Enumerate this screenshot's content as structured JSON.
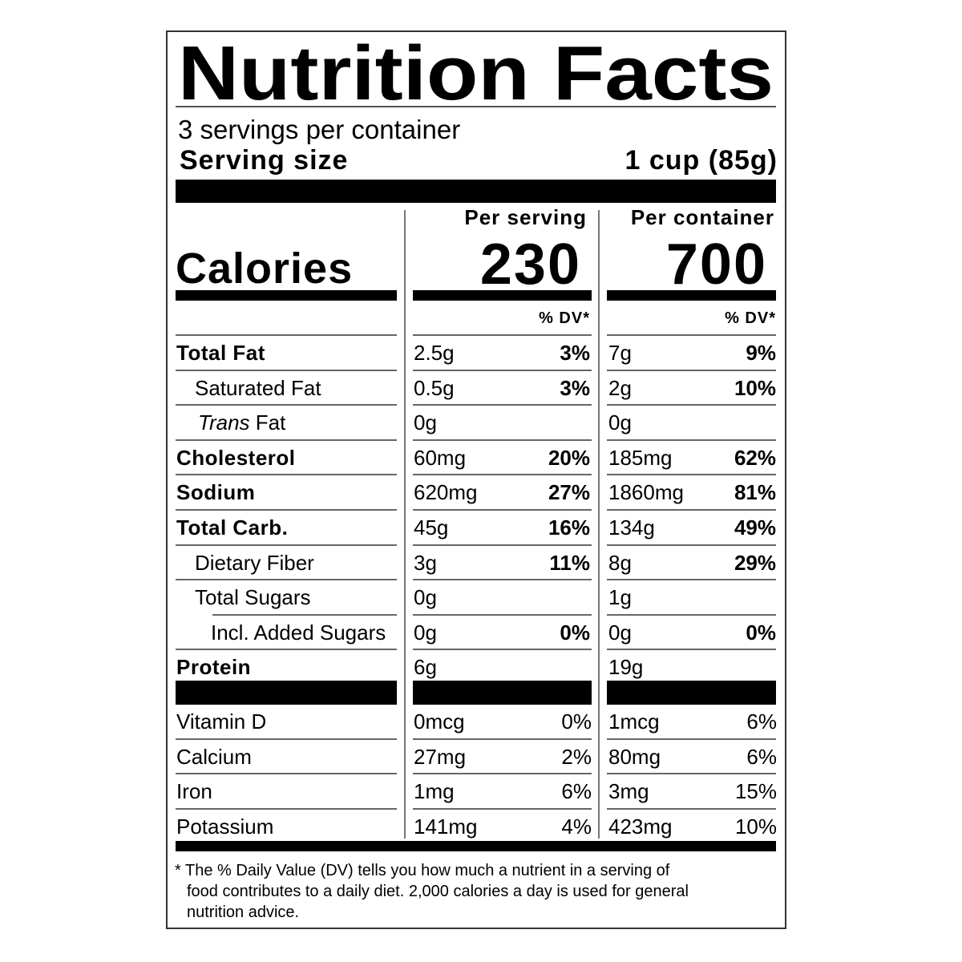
{
  "title": "Nutrition Facts",
  "servings_per_container": "3 servings per container",
  "serving_size_label": "Serving size",
  "serving_size_value": "1 cup (85g)",
  "columns": {
    "per_serving": "Per serving",
    "per_container": "Per container",
    "dv_label": "% DV*"
  },
  "calories": {
    "label": "Calories",
    "per_serving": "230",
    "per_container": "700"
  },
  "nutrients": [
    {
      "name": "Total Fat",
      "style": "bold",
      "serving_amount": "2.5g",
      "serving_dv": "3%",
      "container_amount": "7g",
      "container_dv": "9%"
    },
    {
      "name": "Saturated Fat",
      "style": "sub",
      "serving_amount": "0.5g",
      "serving_dv": "3%",
      "container_amount": "2g",
      "container_dv": "10%"
    },
    {
      "name": "Trans",
      "name_suffix": " Fat",
      "style": "trans",
      "serving_amount": "0g",
      "serving_dv": "",
      "container_amount": "0g",
      "container_dv": ""
    },
    {
      "name": "Cholesterol",
      "style": "bold",
      "serving_amount": "60mg",
      "serving_dv": "20%",
      "container_amount": "185mg",
      "container_dv": "62%"
    },
    {
      "name": "Sodium",
      "style": "bold",
      "serving_amount": "620mg",
      "serving_dv": "27%",
      "container_amount": "1860mg",
      "container_dv": "81%"
    },
    {
      "name": "Total Carb.",
      "style": "bold",
      "serving_amount": "45g",
      "serving_dv": "16%",
      "container_amount": "134g",
      "container_dv": "49%"
    },
    {
      "name": "Dietary Fiber",
      "style": "sub",
      "serving_amount": "3g",
      "serving_dv": "11%",
      "container_amount": "8g",
      "container_dv": "29%"
    },
    {
      "name": "Total Sugars",
      "style": "sub",
      "serving_amount": "0g",
      "serving_dv": "",
      "container_amount": "1g",
      "container_dv": ""
    },
    {
      "name": "Incl. Added Sugars",
      "style": "subsub",
      "serving_amount": "0g",
      "serving_dv": "0%",
      "container_amount": "0g",
      "container_dv": "0%"
    },
    {
      "name": "Protein",
      "style": "bold",
      "serving_amount": "6g",
      "serving_dv": "",
      "container_amount": "19g",
      "container_dv": ""
    }
  ],
  "vitamins": [
    {
      "name": "Vitamin D",
      "serving_amount": "0mcg",
      "serving_dv": "0%",
      "container_amount": "1mcg",
      "container_dv": "6%"
    },
    {
      "name": "Calcium",
      "serving_amount": "27mg",
      "serving_dv": "2%",
      "container_amount": "80mg",
      "container_dv": "6%"
    },
    {
      "name": "Iron",
      "serving_amount": "1mg",
      "serving_dv": "6%",
      "container_amount": "3mg",
      "container_dv": "15%"
    },
    {
      "name": "Potassium",
      "serving_amount": "141mg",
      "serving_dv": "4%",
      "container_amount": "423mg",
      "container_dv": "10%"
    }
  ],
  "footnote": [
    "* The % Daily Value (DV) tells you how much a nutrient in a serving of",
    "food contributes to a daily diet. 2,000 calories a day is used for general",
    "nutrition advice."
  ]
}
